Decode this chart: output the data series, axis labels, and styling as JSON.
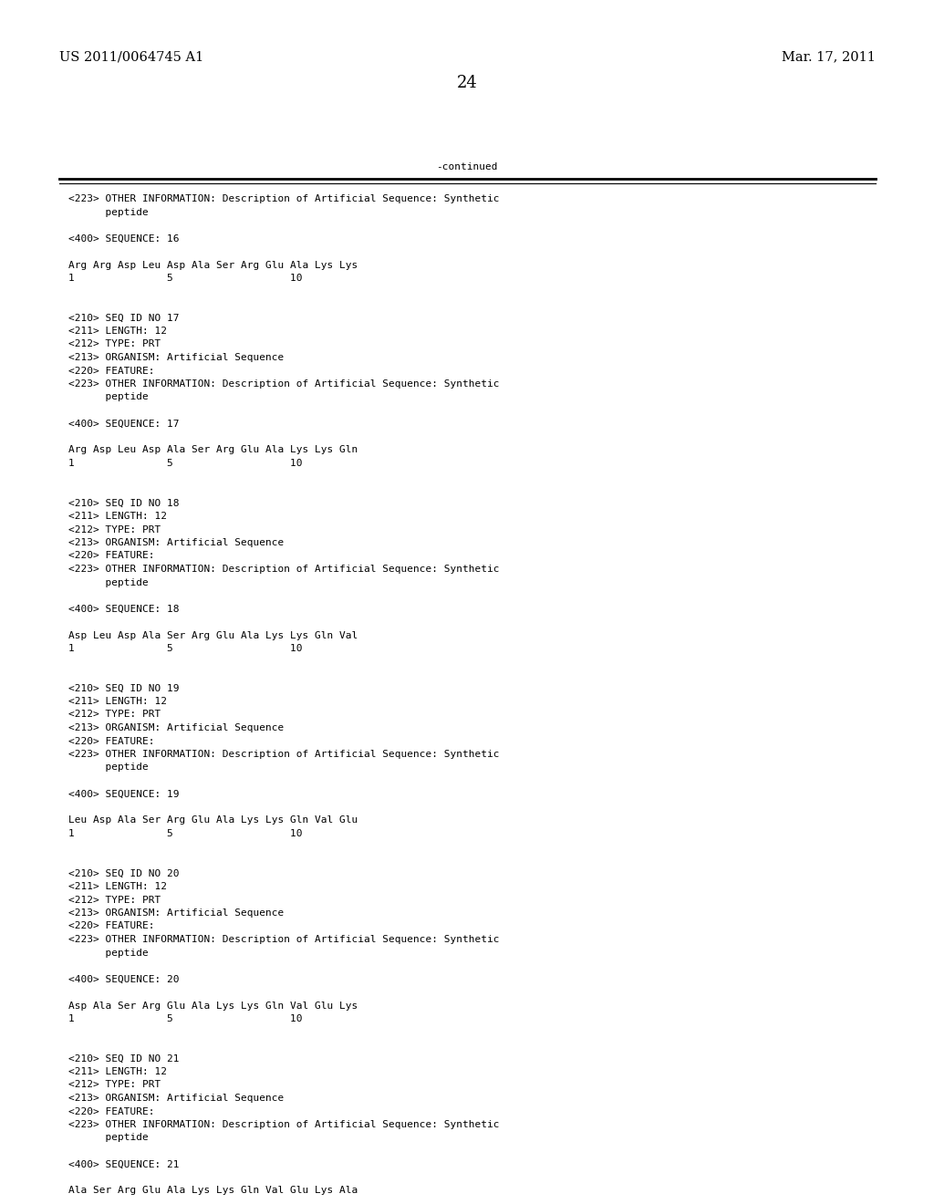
{
  "header_left": "US 2011/0064745 A1",
  "header_right": "Mar. 17, 2011",
  "page_number": "24",
  "continued_label": "-continued",
  "background_color": "#ffffff",
  "text_color": "#000000",
  "font_size_header": 10.5,
  "font_size_page": 13,
  "font_size_body": 8.0,
  "content_lines": [
    "<223> OTHER INFORMATION: Description of Artificial Sequence: Synthetic",
    "      peptide",
    "",
    "<400> SEQUENCE: 16",
    "",
    "Arg Arg Asp Leu Asp Ala Ser Arg Glu Ala Lys Lys",
    "1               5                   10",
    "",
    "",
    "<210> SEQ ID NO 17",
    "<211> LENGTH: 12",
    "<212> TYPE: PRT",
    "<213> ORGANISM: Artificial Sequence",
    "<220> FEATURE:",
    "<223> OTHER INFORMATION: Description of Artificial Sequence: Synthetic",
    "      peptide",
    "",
    "<400> SEQUENCE: 17",
    "",
    "Arg Asp Leu Asp Ala Ser Arg Glu Ala Lys Lys Gln",
    "1               5                   10",
    "",
    "",
    "<210> SEQ ID NO 18",
    "<211> LENGTH: 12",
    "<212> TYPE: PRT",
    "<213> ORGANISM: Artificial Sequence",
    "<220> FEATURE:",
    "<223> OTHER INFORMATION: Description of Artificial Sequence: Synthetic",
    "      peptide",
    "",
    "<400> SEQUENCE: 18",
    "",
    "Asp Leu Asp Ala Ser Arg Glu Ala Lys Lys Gln Val",
    "1               5                   10",
    "",
    "",
    "<210> SEQ ID NO 19",
    "<211> LENGTH: 12",
    "<212> TYPE: PRT",
    "<213> ORGANISM: Artificial Sequence",
    "<220> FEATURE:",
    "<223> OTHER INFORMATION: Description of Artificial Sequence: Synthetic",
    "      peptide",
    "",
    "<400> SEQUENCE: 19",
    "",
    "Leu Asp Ala Ser Arg Glu Ala Lys Lys Gln Val Glu",
    "1               5                   10",
    "",
    "",
    "<210> SEQ ID NO 20",
    "<211> LENGTH: 12",
    "<212> TYPE: PRT",
    "<213> ORGANISM: Artificial Sequence",
    "<220> FEATURE:",
    "<223> OTHER INFORMATION: Description of Artificial Sequence: Synthetic",
    "      peptide",
    "",
    "<400> SEQUENCE: 20",
    "",
    "Asp Ala Ser Arg Glu Ala Lys Lys Gln Val Glu Lys",
    "1               5                   10",
    "",
    "",
    "<210> SEQ ID NO 21",
    "<211> LENGTH: 12",
    "<212> TYPE: PRT",
    "<213> ORGANISM: Artificial Sequence",
    "<220> FEATURE:",
    "<223> OTHER INFORMATION: Description of Artificial Sequence: Synthetic",
    "      peptide",
    "",
    "<400> SEQUENCE: 21",
    "",
    "Ala Ser Arg Glu Ala Lys Lys Gln Val Glu Lys Ala"
  ]
}
